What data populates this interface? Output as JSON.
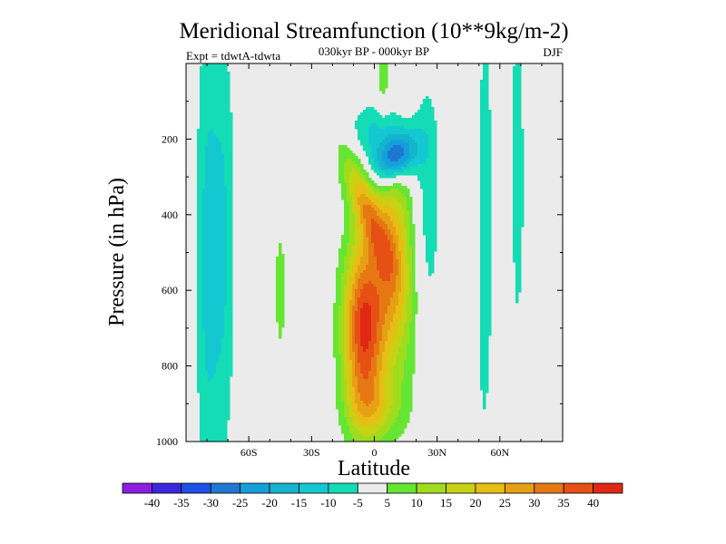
{
  "chart_data": {
    "type": "contour",
    "title": "Meridional Streamfunction (10**9kg/m-2)",
    "subtitle": "030kyr BP - 000kyr BP",
    "left_label": "Expt = tdwtA-tdwta",
    "right_label": "DJF",
    "xlabel": "Latitude",
    "ylabel": "Pressure (in hPa)",
    "xlim": [
      -90,
      90
    ],
    "ylim": [
      1000,
      0
    ],
    "x_ticks": [
      {
        "value": -60,
        "label": "60S"
      },
      {
        "value": -30,
        "label": "30S"
      },
      {
        "value": 0,
        "label": "0"
      },
      {
        "value": 30,
        "label": "30N"
      },
      {
        "value": 60,
        "label": "60N"
      }
    ],
    "y_ticks": [
      {
        "value": 200,
        "label": "200"
      },
      {
        "value": 400,
        "label": "400"
      },
      {
        "value": 600,
        "label": "600"
      },
      {
        "value": 800,
        "label": "800"
      },
      {
        "value": 1000,
        "label": "1000"
      }
    ],
    "fields": [
      {
        "name": "main-positive-cell",
        "lat": -5,
        "p": 700,
        "slat": 7,
        "sp": 170,
        "amp": 41,
        "tilt": 0
      },
      {
        "name": "positive-upper-extension",
        "lat": -4,
        "p": 380,
        "slat": 5,
        "sp": 110,
        "amp": 22,
        "tilt": 0.06
      },
      {
        "name": "secondary-positive-cell",
        "lat": 8,
        "p": 520,
        "slat": 6,
        "sp": 180,
        "amp": 20,
        "tilt": 0
      },
      {
        "name": "northern-positive-lobe",
        "lat": 16,
        "p": 600,
        "slat": 8,
        "sp": 250,
        "amp": 8,
        "tilt": 0
      },
      {
        "name": "near-surface-positive",
        "lat": 0,
        "p": 910,
        "slat": 9,
        "sp": 60,
        "amp": 11,
        "tilt": 0
      },
      {
        "name": "upper-negative-cell",
        "lat": 10,
        "p": 250,
        "slat": 7,
        "sp": 45,
        "amp": -31,
        "tilt": -0.05
      },
      {
        "name": "upper-negative-extension",
        "lat": 3,
        "p": 180,
        "slat": 10,
        "sp": 55,
        "amp": -13,
        "tilt": 0
      },
      {
        "name": "negative-strip-25n",
        "lat": 25,
        "p": 420,
        "slat": 5,
        "sp": 290,
        "amp": -10,
        "tilt": 0
      },
      {
        "name": "negative-strip-80s",
        "lat": -80,
        "p": 520,
        "slat": 4,
        "sp": 480,
        "amp": -11,
        "tilt": 0
      },
      {
        "name": "negative-strip-72s",
        "lat": -72,
        "p": 480,
        "slat": 4,
        "sp": 420,
        "amp": -10,
        "tilt": 0
      },
      {
        "name": "negative-strip-52n",
        "lat": 52,
        "p": 420,
        "slat": 3.5,
        "sp": 480,
        "amp": -9,
        "tilt": 0
      },
      {
        "name": "negative-strip-68n",
        "lat": 68,
        "p": 300,
        "slat": 3,
        "sp": 360,
        "amp": -8,
        "tilt": 0
      },
      {
        "name": "positive-strip-45s",
        "lat": -45,
        "p": 600,
        "slat": 2,
        "sp": 130,
        "amp": 8,
        "tilt": 0
      },
      {
        "name": "positive-strip-5n-top",
        "lat": 4,
        "p": 20,
        "slat": 2,
        "sp": 90,
        "amp": 8,
        "tilt": 0
      },
      {
        "name": "positive-strip-45n",
        "lat": 47,
        "p": 300,
        "slat": 2.5,
        "sp": 420,
        "amp": 7,
        "tilt": 0
      },
      {
        "name": "positive-strip-60n",
        "lat": 63,
        "p": 500,
        "slat": 2,
        "sp": 300,
        "amp": 6.5,
        "tilt": 0
      }
    ],
    "colorbar": {
      "labels": [
        "-40",
        "-35",
        "-30",
        "-25",
        "-20",
        "-15",
        "-10",
        "-5",
        "5",
        "10",
        "15",
        "20",
        "25",
        "30",
        "35",
        "40"
      ],
      "bounds": [
        -40,
        -35,
        -30,
        -25,
        -20,
        -15,
        -10,
        -5,
        5,
        10,
        15,
        20,
        25,
        30,
        35,
        40
      ],
      "colors": [
        "#8c1ee0",
        "#3c28dc",
        "#1e50e6",
        "#1e78d2",
        "#14a0dc",
        "#14b4cd",
        "#14c8d2",
        "#14dcb4",
        "#ebebeb",
        "#64e632",
        "#a0dc1e",
        "#c8d214",
        "#e6be14",
        "#e6a014",
        "#e67814",
        "#e65014",
        "#e02814"
      ]
    }
  }
}
